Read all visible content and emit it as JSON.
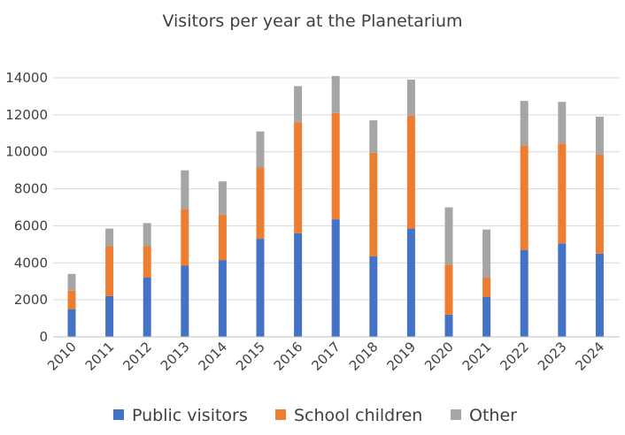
{
  "chart_data": {
    "type": "bar",
    "stacked": true,
    "title": "Visitors per year at the Planetarium",
    "xlabel": "",
    "ylabel": "",
    "ylim": [
      0,
      14000
    ],
    "yticks": [
      0,
      2000,
      4000,
      6000,
      8000,
      10000,
      12000,
      14000
    ],
    "grid": true,
    "legend": "bottom",
    "categories": [
      "2010",
      "2011",
      "2012",
      "2013",
      "2014",
      "2015",
      "2016",
      "2017",
      "2018",
      "2019",
      "2020",
      "2021",
      "2022",
      "2023",
      "2024"
    ],
    "series": [
      {
        "name": "Public visitors",
        "color": "#4472c4",
        "values": [
          1500,
          2200,
          3200,
          3850,
          4150,
          5300,
          5600,
          6350,
          4350,
          5850,
          1200,
          2150,
          4700,
          5050,
          4500
        ]
      },
      {
        "name": "School children",
        "color": "#ed7d31",
        "values": [
          1000,
          2700,
          1700,
          3050,
          2450,
          3850,
          6000,
          5750,
          5600,
          6100,
          2700,
          1050,
          5650,
          5400,
          5350
        ]
      },
      {
        "name": "Other",
        "color": "#a5a5a5",
        "values": [
          900,
          950,
          1250,
          2100,
          1800,
          1950,
          1950,
          2000,
          1750,
          1950,
          3100,
          2600,
          2400,
          2250,
          2050
        ]
      }
    ]
  }
}
